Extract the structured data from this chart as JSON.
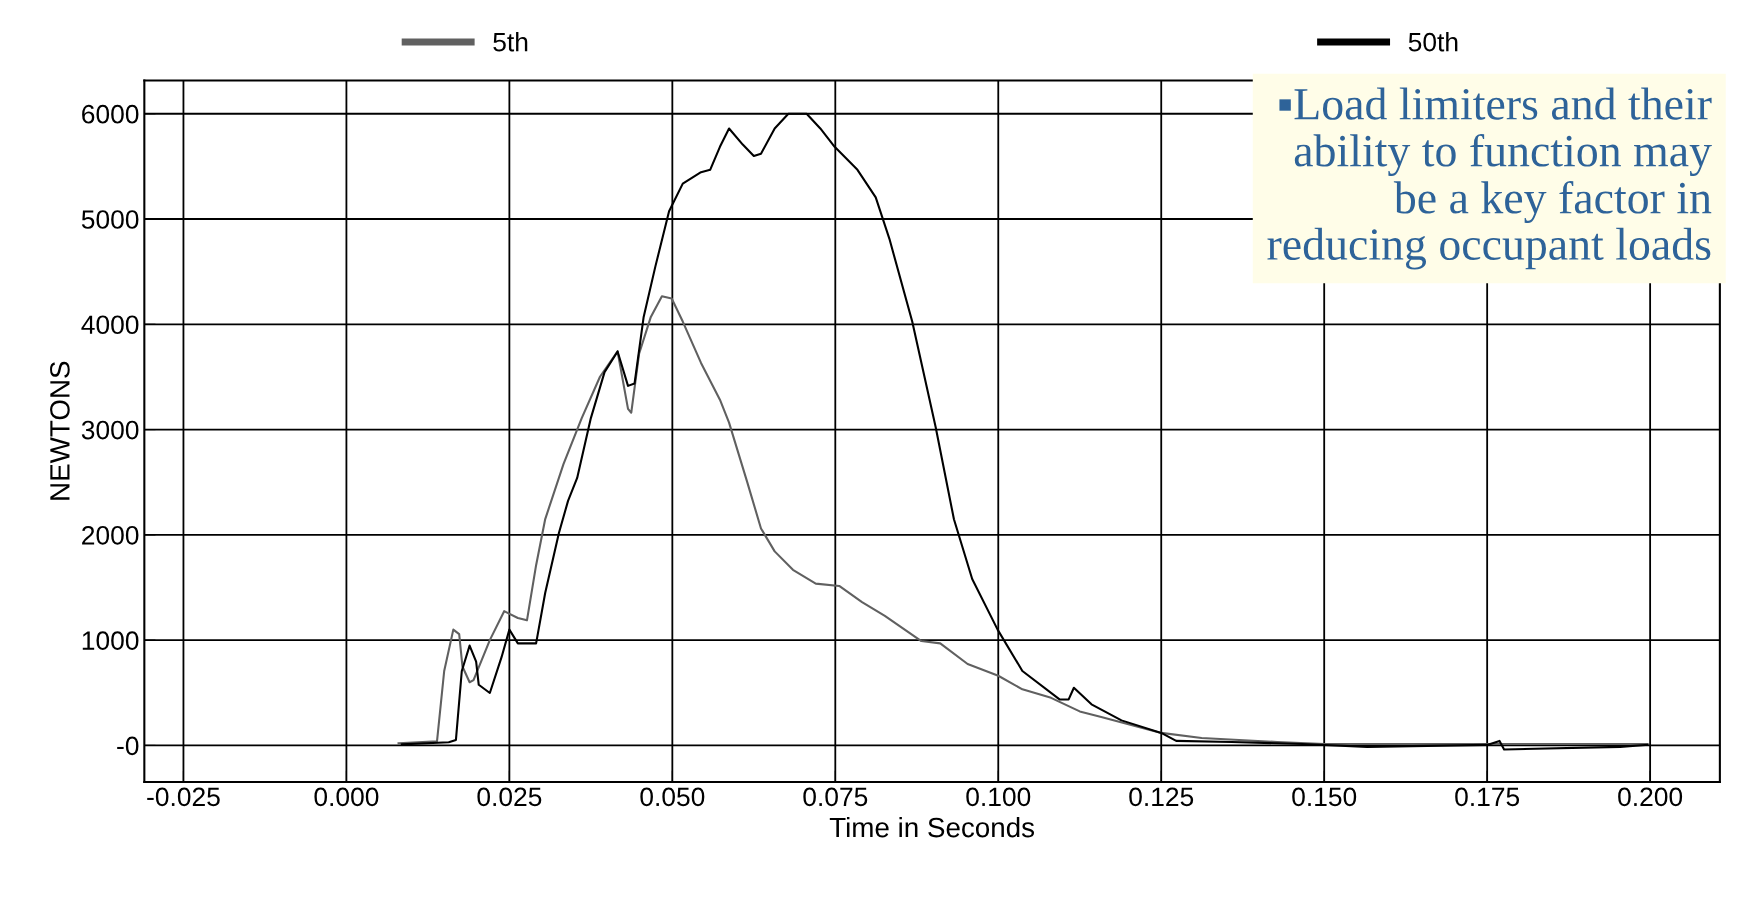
{
  "chart_data": {
    "type": "line",
    "xlabel": "Time in Seconds",
    "ylabel": "NEWTONS",
    "xlim": [
      -0.031,
      0.2107
    ],
    "ylim": [
      -347,
      6316
    ],
    "xticks": [
      {
        "value": -0.025,
        "label": "-0.025"
      },
      {
        "value": 0,
        "label": "0.000"
      },
      {
        "value": 0.025,
        "label": "0.025"
      },
      {
        "value": 0.05,
        "label": "0.050"
      },
      {
        "value": 0.075,
        "label": "0.075"
      },
      {
        "value": 0.1,
        "label": "0.100"
      },
      {
        "value": 0.125,
        "label": "0.125"
      },
      {
        "value": 0.15,
        "label": "0.150"
      },
      {
        "value": 0.175,
        "label": "0.175"
      },
      {
        "value": 0.2,
        "label": "0.200"
      }
    ],
    "yticks": [
      {
        "value": 0,
        "label": "-0"
      },
      1000,
      2000,
      3000,
      4000,
      5000,
      6000
    ],
    "grid": true,
    "legend": "top",
    "marker": "none",
    "line_style": "solid",
    "annotations": [
      "▪Load limiters and their\nability to function may\nbe a key factor in\nreducing occupant loads"
    ],
    "series": [
      {
        "name": "5th",
        "color": "#606060",
        "x": [
          0.008,
          0.0139,
          0.015,
          0.0164,
          0.0173,
          0.0178,
          0.0189,
          0.0195,
          0.022,
          0.0242,
          0.0263,
          0.0277,
          0.0291,
          0.0305,
          0.0333,
          0.0361,
          0.0389,
          0.0416,
          0.0432,
          0.0437,
          0.0449,
          0.0467,
          0.0484,
          0.0499,
          0.0516,
          0.0544,
          0.0573,
          0.0587,
          0.0615,
          0.0636,
          0.0657,
          0.0685,
          0.072,
          0.0756,
          0.0791,
          0.0826,
          0.0882,
          0.0911,
          0.0953,
          0.1,
          0.1037,
          0.1081,
          0.1125,
          0.1158,
          0.125,
          0.1312,
          0.1428,
          0.15,
          0.175,
          0.1996
        ],
        "values": [
          20,
          40,
          707,
          1100,
          1057,
          750,
          600,
          620,
          1000,
          1275,
          1210,
          1188,
          1712,
          2150,
          2672,
          3109,
          3502,
          3742,
          3197,
          3160,
          3720,
          4070,
          4266,
          4245,
          4026,
          3633,
          3284,
          3066,
          2498,
          2061,
          1843,
          1668,
          1537,
          1515,
          1362,
          1231,
          991,
          969,
          773,
          662,
          533,
          452,
          323,
          271,
          119,
          71,
          33,
          14,
          14,
          14
        ]
      },
      {
        "name": "50th",
        "color": "#000000",
        "x": [
          0.0085,
          0.0157,
          0.0168,
          0.0177,
          0.0189,
          0.0199,
          0.0203,
          0.022,
          0.0238,
          0.025,
          0.0263,
          0.0291,
          0.0305,
          0.0326,
          0.034,
          0.0354,
          0.0375,
          0.0396,
          0.0416,
          0.0432,
          0.0442,
          0.0456,
          0.0474,
          0.0495,
          0.0516,
          0.0544,
          0.0558,
          0.0573,
          0.0587,
          0.0608,
          0.0625,
          0.0636,
          0.0657,
          0.0678,
          0.0706,
          0.0727,
          0.0749,
          0.0784,
          0.0812,
          0.0833,
          0.0868,
          0.0904,
          0.0932,
          0.096,
          0.0999,
          0.1037,
          0.1094,
          0.1108,
          0.1116,
          0.1143,
          0.1189,
          0.125,
          0.1273,
          0.1358,
          0.1466,
          0.1566,
          0.175,
          0.1769,
          0.1776,
          0.1954,
          0.1996
        ],
        "values": [
          10,
          30,
          52,
          707,
          948,
          795,
          576,
          498,
          838,
          1100,
          969,
          969,
          1450,
          2017,
          2323,
          2541,
          3109,
          3546,
          3742,
          3415,
          3437,
          4070,
          4550,
          5074,
          5336,
          5445,
          5467,
          5686,
          5860,
          5707,
          5598,
          5620,
          5860,
          6000,
          6000,
          5860,
          5686,
          5467,
          5205,
          4812,
          4026,
          3022,
          2148,
          1581,
          1100,
          707,
          437,
          437,
          548,
          390,
          238,
          119,
          43,
          33,
          14,
          -14,
          5,
          43,
          -38,
          -14,
          5
        ]
      }
    ]
  }
}
